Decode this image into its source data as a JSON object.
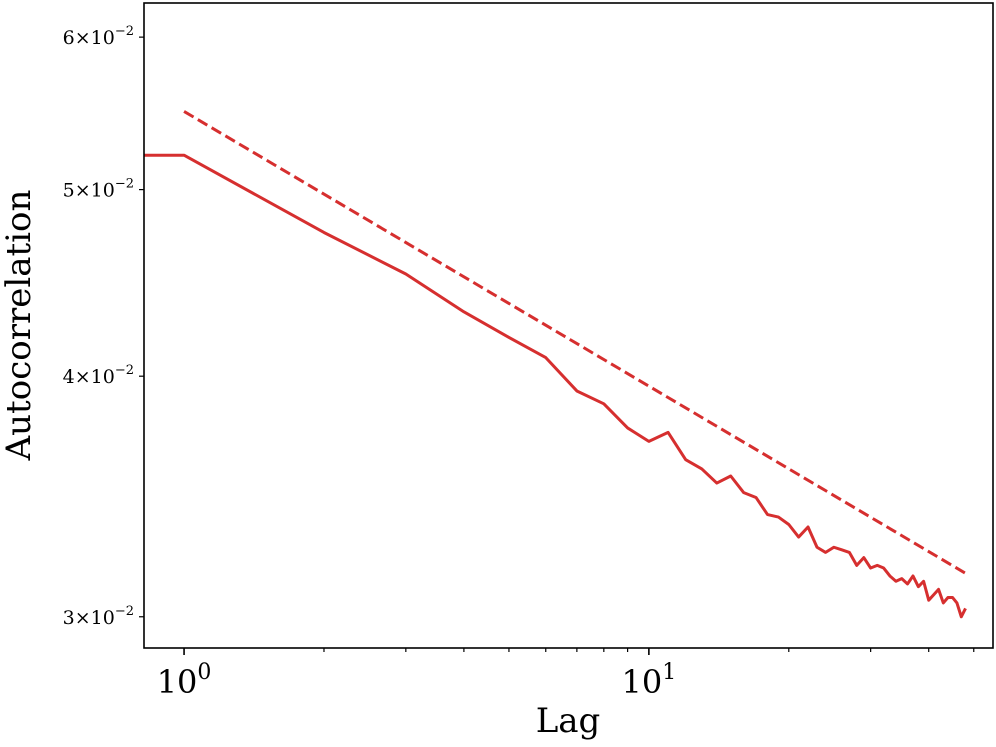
{
  "chart_data": {
    "type": "line",
    "xlabel": "Lag",
    "ylabel": "Autocorrelation",
    "x_scale": "log",
    "y_scale": "log",
    "xlim": [
      0.82,
      55
    ],
    "ylim": [
      0.0289,
      0.0625
    ],
    "x_ticks": [
      {
        "value": 1,
        "base": "10",
        "exp": "0"
      },
      {
        "value": 10,
        "base": "10",
        "exp": "1"
      }
    ],
    "y_ticks": [
      {
        "value": 0.03,
        "mant": "3",
        "base": "10",
        "exp": "−2"
      },
      {
        "value": 0.04,
        "mant": "4",
        "base": "10",
        "exp": "−2"
      },
      {
        "value": 0.05,
        "mant": "5",
        "base": "10",
        "exp": "−2"
      },
      {
        "value": 0.06,
        "mant": "6",
        "base": "10",
        "exp": "−2"
      }
    ],
    "grid": false,
    "series": [
      {
        "style": "solid",
        "color": "#d62f2f",
        "x": [
          0.75,
          1,
          2,
          3,
          4,
          5,
          6,
          7,
          8,
          9,
          10,
          11,
          12,
          13,
          14,
          15,
          16,
          17,
          18,
          19,
          20,
          21,
          22,
          23,
          24,
          25,
          26,
          27,
          28,
          29,
          30,
          31,
          32,
          33,
          34,
          35,
          36,
          37,
          38,
          39,
          40,
          41,
          42,
          43,
          44,
          45,
          46,
          47,
          48
        ],
        "y": [
          0.0521,
          0.0521,
          0.0475,
          0.0452,
          0.0432,
          0.0419,
          0.0409,
          0.0393,
          0.0387,
          0.0376,
          0.037,
          0.0374,
          0.0362,
          0.0358,
          0.0352,
          0.0355,
          0.0348,
          0.0346,
          0.0339,
          0.0338,
          0.0335,
          0.033,
          0.0334,
          0.0326,
          0.0324,
          0.0326,
          0.0325,
          0.0324,
          0.0319,
          0.0322,
          0.0318,
          0.0319,
          0.0318,
          0.0315,
          0.0313,
          0.0314,
          0.0312,
          0.0315,
          0.0311,
          0.0313,
          0.0306,
          0.0308,
          0.031,
          0.0305,
          0.0307,
          0.0307,
          0.0305,
          0.03,
          0.0303
        ]
      },
      {
        "style": "dashed",
        "color": "#d62f2f",
        "x": [
          1,
          48
        ],
        "y": [
          0.0549,
          0.0316
        ]
      }
    ]
  }
}
